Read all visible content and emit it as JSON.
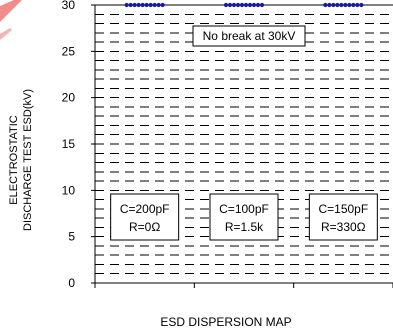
{
  "chart_data": {
    "type": "scatter",
    "title": "",
    "caption": "ESD DISPERSION    MAP",
    "ylabel_lines": [
      "ELECTROSTATIC",
      "DISCHARGE TEST ESD(kV)"
    ],
    "ylim": [
      0,
      30
    ],
    "yticks": [
      0,
      5,
      10,
      15,
      20,
      25,
      30
    ],
    "grid": "dashed horizontal every 1 kV",
    "categories": [
      {
        "label_lines": [
          "C=200pF",
          "R=0Ω"
        ],
        "esd_kV": 30
      },
      {
        "label_lines": [
          "C=100pF",
          "R=1.5k"
        ],
        "esd_kV": 30
      },
      {
        "label_lines": [
          "C=150pF",
          "R=330Ω"
        ],
        "esd_kV": 30
      }
    ],
    "annotation": "No break at 30kV",
    "marker_color": "#1a1aa0"
  }
}
